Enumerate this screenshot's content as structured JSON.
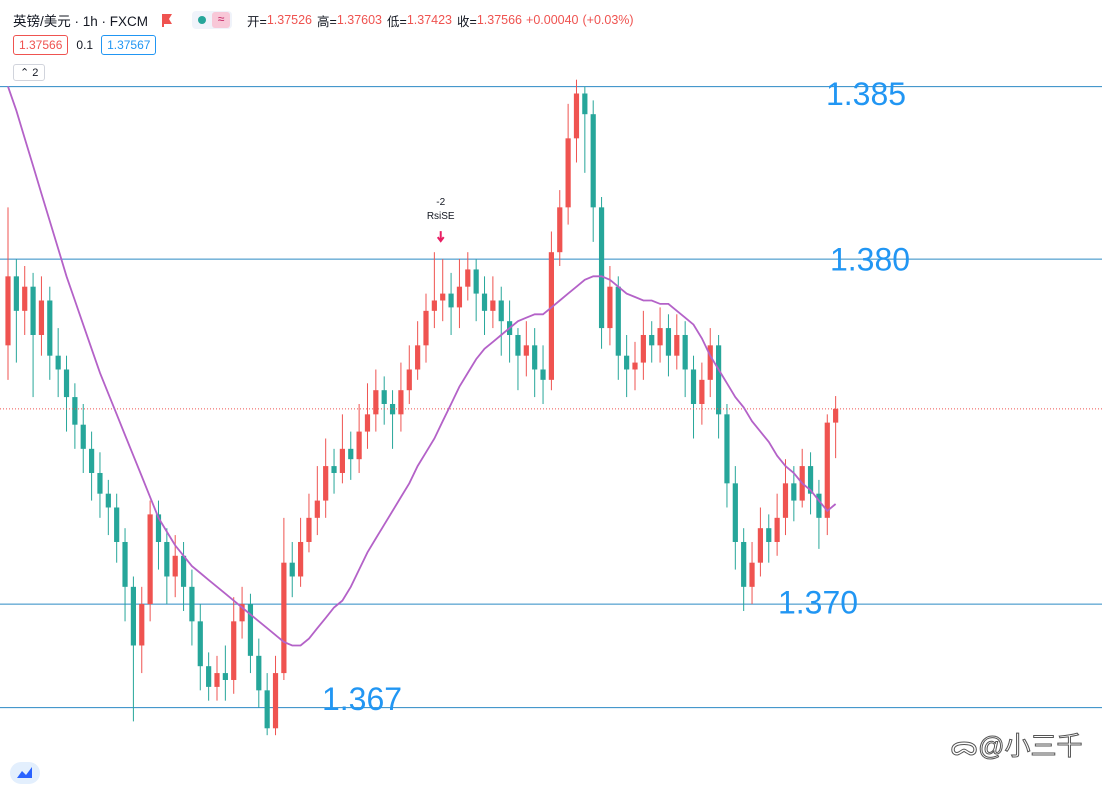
{
  "header": {
    "symbol": "英镑/美元 · 1h · FXCM",
    "ohlc_labels": [
      "开=",
      "高=",
      "低=",
      "收="
    ],
    "change": "+0.00040",
    "change_pct": "(+0.03%)",
    "bid": 1.37566,
    "spread": 0.1,
    "ask": 1.37567,
    "collapse": "2"
  },
  "watermark": "@小三千",
  "chart_data": {
    "type": "candlestick",
    "up_color": "#ef5350",
    "down_color": "#26a69a",
    "ylim": [
      1.36464,
      1.38751
    ],
    "open": [
      1.3775,
      1.3795,
      1.3785,
      1.3792,
      1.3778,
      1.3788,
      1.3772,
      1.3768,
      1.376,
      1.3752,
      1.3745,
      1.3738,
      1.3732,
      1.3728,
      1.3718,
      1.3705,
      1.3688,
      1.37,
      1.3726,
      1.3718,
      1.3708,
      1.3714,
      1.3705,
      1.3695,
      1.3682,
      1.3676,
      1.368,
      1.3678,
      1.3695,
      1.37,
      1.3685,
      1.3675,
      1.3664,
      1.368,
      1.3712,
      1.3708,
      1.3718,
      1.3725,
      1.373,
      1.374,
      1.3738,
      1.3745,
      1.3742,
      1.375,
      1.3755,
      1.3762,
      1.3758,
      1.3755,
      1.3762,
      1.3768,
      1.3775,
      1.3785,
      1.3788,
      1.379,
      1.3786,
      1.3792,
      1.3797,
      1.379,
      1.3785,
      1.3788,
      1.3782,
      1.3778,
      1.3772,
      1.3775,
      1.3768,
      1.3765,
      1.3802,
      1.3815,
      1.3835,
      1.3848,
      1.3842,
      1.3815,
      1.378,
      1.3792,
      1.3772,
      1.3768,
      1.377,
      1.3778,
      1.3775,
      1.378,
      1.3772,
      1.3778,
      1.3768,
      1.3758,
      1.3765,
      1.3775,
      1.3755,
      1.3735,
      1.3718,
      1.3705,
      1.3712,
      1.3722,
      1.3718,
      1.3725,
      1.3735,
      1.373,
      1.374,
      1.3732,
      1.3725,
      1.37526
    ],
    "high": [
      1.3815,
      1.38,
      1.3798,
      1.3796,
      1.3795,
      1.3792,
      1.378,
      1.3772,
      1.3764,
      1.3758,
      1.375,
      1.3744,
      1.3736,
      1.3732,
      1.3722,
      1.3708,
      1.3705,
      1.373,
      1.373,
      1.3722,
      1.372,
      1.3718,
      1.371,
      1.37,
      1.3686,
      1.3685,
      1.3688,
      1.3702,
      1.3705,
      1.3703,
      1.369,
      1.368,
      1.3685,
      1.3725,
      1.3718,
      1.3725,
      1.3732,
      1.374,
      1.3748,
      1.3745,
      1.3755,
      1.375,
      1.3758,
      1.3764,
      1.3768,
      1.3766,
      1.3762,
      1.377,
      1.3775,
      1.3782,
      1.379,
      1.3802,
      1.38,
      1.3796,
      1.38,
      1.3802,
      1.38,
      1.3795,
      1.3795,
      1.3792,
      1.3788,
      1.378,
      1.3782,
      1.378,
      1.3775,
      1.3808,
      1.382,
      1.3845,
      1.3852,
      1.385,
      1.3846,
      1.3818,
      1.3798,
      1.3795,
      1.3778,
      1.3776,
      1.3785,
      1.3782,
      1.3786,
      1.3784,
      1.3784,
      1.3782,
      1.3772,
      1.377,
      1.378,
      1.3778,
      1.3758,
      1.374,
      1.3722,
      1.3718,
      1.3728,
      1.3726,
      1.3732,
      1.3742,
      1.374,
      1.3745,
      1.3744,
      1.3736,
      1.3755,
      1.37603
    ],
    "low": [
      1.3765,
      1.377,
      1.3778,
      1.376,
      1.3772,
      1.3765,
      1.376,
      1.375,
      1.3745,
      1.3738,
      1.373,
      1.3725,
      1.372,
      1.3712,
      1.3695,
      1.3666,
      1.368,
      1.3695,
      1.371,
      1.37,
      1.3702,
      1.3698,
      1.3688,
      1.3675,
      1.3672,
      1.3672,
      1.3672,
      1.3674,
      1.369,
      1.368,
      1.367,
      1.3662,
      1.3662,
      1.3678,
      1.3702,
      1.3705,
      1.3715,
      1.372,
      1.3725,
      1.3732,
      1.3735,
      1.3736,
      1.3738,
      1.3745,
      1.375,
      1.3752,
      1.3745,
      1.375,
      1.3758,
      1.3765,
      1.377,
      1.378,
      1.3782,
      1.3778,
      1.378,
      1.3788,
      1.3782,
      1.3778,
      1.378,
      1.3772,
      1.377,
      1.3762,
      1.3766,
      1.376,
      1.3758,
      1.3762,
      1.3798,
      1.381,
      1.3828,
      1.3825,
      1.3805,
      1.3774,
      1.3775,
      1.3765,
      1.376,
      1.3762,
      1.3765,
      1.377,
      1.377,
      1.3766,
      1.3768,
      1.376,
      1.3748,
      1.3752,
      1.376,
      1.3748,
      1.3728,
      1.371,
      1.3698,
      1.37,
      1.3708,
      1.3712,
      1.3714,
      1.372,
      1.3724,
      1.3728,
      1.3726,
      1.3716,
      1.372,
      1.37423
    ],
    "close": [
      1.3795,
      1.3785,
      1.3792,
      1.3778,
      1.3788,
      1.3772,
      1.3768,
      1.376,
      1.3752,
      1.3745,
      1.3738,
      1.3732,
      1.3728,
      1.3718,
      1.3705,
      1.3688,
      1.37,
      1.3726,
      1.3718,
      1.3708,
      1.3714,
      1.3705,
      1.3695,
      1.3682,
      1.3676,
      1.368,
      1.3678,
      1.3695,
      1.37,
      1.3685,
      1.3675,
      1.3664,
      1.368,
      1.3712,
      1.3708,
      1.3718,
      1.3725,
      1.373,
      1.374,
      1.3738,
      1.3745,
      1.3742,
      1.375,
      1.3755,
      1.3762,
      1.3758,
      1.3755,
      1.3762,
      1.3768,
      1.3775,
      1.3785,
      1.3788,
      1.379,
      1.3786,
      1.3792,
      1.3797,
      1.379,
      1.3785,
      1.3788,
      1.3782,
      1.3778,
      1.3772,
      1.3775,
      1.3768,
      1.3765,
      1.3802,
      1.3815,
      1.3835,
      1.3848,
      1.3842,
      1.3815,
      1.378,
      1.3792,
      1.3772,
      1.3768,
      1.377,
      1.3778,
      1.3775,
      1.378,
      1.3772,
      1.3778,
      1.3768,
      1.3758,
      1.3765,
      1.3775,
      1.3755,
      1.3735,
      1.3718,
      1.3705,
      1.3712,
      1.3722,
      1.3718,
      1.3725,
      1.3735,
      1.373,
      1.374,
      1.3732,
      1.3725,
      1.37526,
      1.37566
    ],
    "ma": {
      "color": "#b462c8",
      "values": [
        1.385,
        1.3843,
        1.3835,
        1.3827,
        1.3819,
        1.3811,
        1.3803,
        1.3795,
        1.3788,
        1.3781,
        1.3774,
        1.3767,
        1.3761,
        1.3755,
        1.3749,
        1.3743,
        1.3737,
        1.3731,
        1.3725,
        1.3721,
        1.3717,
        1.3714,
        1.3711,
        1.3709,
        1.3707,
        1.3705,
        1.3703,
        1.3701,
        1.3699,
        1.3697,
        1.3695,
        1.3693,
        1.3691,
        1.3689,
        1.3688,
        1.3688,
        1.369,
        1.3693,
        1.3696,
        1.3699,
        1.3701,
        1.3705,
        1.371,
        1.3715,
        1.3719,
        1.3723,
        1.3727,
        1.3731,
        1.3735,
        1.374,
        1.3744,
        1.3748,
        1.3753,
        1.3758,
        1.3763,
        1.3767,
        1.3771,
        1.3774,
        1.3776,
        1.3778,
        1.378,
        1.3782,
        1.3783,
        1.3784,
        1.3784,
        1.3786,
        1.3788,
        1.379,
        1.3792,
        1.3794,
        1.3795,
        1.3795,
        1.3794,
        1.3792,
        1.379,
        1.3789,
        1.3788,
        1.3788,
        1.3787,
        1.3787,
        1.3785,
        1.3783,
        1.3781,
        1.3777,
        1.3772,
        1.3768,
        1.3764,
        1.376,
        1.3757,
        1.3753,
        1.375,
        1.3747,
        1.3743,
        1.374,
        1.3738,
        1.3735,
        1.3733,
        1.373,
        1.3727,
        1.3729
      ]
    },
    "levels": [
      1.385,
      {
        "value": 1.38,
        "label": "1.380"
      },
      {
        "value": 1.37,
        "label": "1.370"
      },
      1.367
    ],
    "level_color": "#2b8ac4",
    "level_label_color": "#2196f3",
    "signal": {
      "value": -2,
      "label": "RsiSE"
    }
  }
}
